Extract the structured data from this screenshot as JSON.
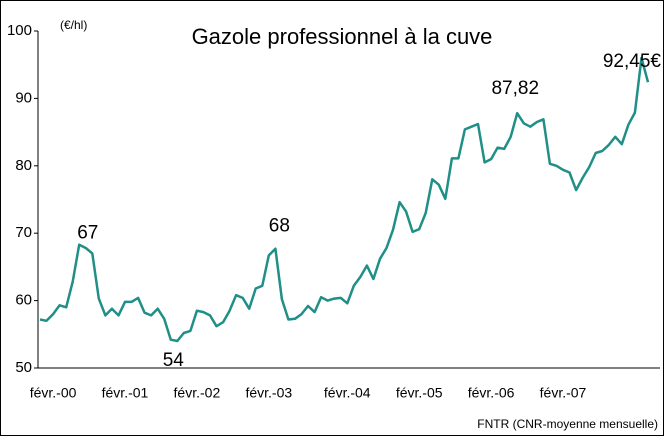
{
  "chart_data": {
    "type": "line",
    "title": "Gazole professionnel à la cuve",
    "unit_label": "(€/hl)",
    "source": "FNTR (CNR-moyenne mensuelle)",
    "categories": [
      null,
      null,
      "févr.-00",
      null,
      null,
      null,
      null,
      null,
      null,
      null,
      null,
      null,
      null,
      "févr.-01",
      null,
      null,
      null,
      null,
      null,
      null,
      null,
      null,
      null,
      null,
      "févr.-02",
      null,
      null,
      null,
      null,
      null,
      null,
      null,
      null,
      null,
      null,
      "févr.-03",
      null,
      null,
      null,
      null,
      null,
      null,
      null,
      null,
      null,
      null,
      null,
      "févr.-04",
      null,
      null,
      null,
      null,
      null,
      null,
      null,
      null,
      null,
      null,
      "févr.-05",
      null,
      null,
      null,
      null,
      null,
      null,
      null,
      null,
      null,
      null,
      "févr.-06",
      null,
      null,
      null,
      null,
      null,
      null,
      null,
      null,
      null,
      null,
      "févr.-07",
      null,
      null,
      null,
      null,
      null,
      null,
      null,
      null,
      null,
      null,
      null,
      null,
      null
    ],
    "series": [
      {
        "name": "Gazole",
        "color": "#1f8f87",
        "values": [
          57.2,
          57.0,
          58.0,
          59.3,
          59.0,
          62.8,
          68.3,
          67.8,
          67.0,
          60.3,
          57.8,
          58.8,
          57.8,
          59.8,
          59.8,
          60.4,
          58.2,
          57.8,
          58.8,
          57.3,
          54.2,
          54.0,
          55.2,
          55.5,
          58.5,
          58.3,
          57.8,
          56.2,
          56.8,
          58.5,
          60.8,
          60.4,
          58.8,
          61.8,
          62.2,
          66.7,
          67.7,
          60.2,
          57.2,
          57.3,
          58.0,
          59.2,
          58.3,
          60.5,
          60.0,
          60.3,
          60.4,
          59.6,
          62.2,
          63.5,
          65.2,
          63.2,
          66.2,
          67.8,
          70.5,
          74.6,
          73.2,
          70.2,
          70.6,
          73.0,
          78.0,
          77.2,
          75.1,
          81.1,
          81.1,
          85.4,
          85.8,
          86.2,
          80.5,
          81.0,
          82.7,
          82.5,
          84.3,
          87.8,
          86.3,
          85.8,
          86.5,
          86.9,
          80.3,
          80.0,
          79.4,
          79.0,
          76.4,
          78.2,
          79.8,
          81.9,
          82.2,
          83.1,
          84.3,
          83.2,
          86.1,
          87.9,
          96.0,
          92.4
        ]
      }
    ],
    "annotations": [
      {
        "text": "67",
        "index": 7,
        "value": 67
      },
      {
        "text": "54",
        "index": 21,
        "value": 54
      },
      {
        "text": "68",
        "index": 36,
        "value": 68
      },
      {
        "text": "87,82",
        "index": 73,
        "value": 87.82
      },
      {
        "text": "92,45€",
        "index": 91,
        "value": 92.45
      }
    ],
    "ylim": [
      50,
      100
    ],
    "yticks": [
      50,
      60,
      70,
      80,
      90,
      100
    ],
    "grid": false
  }
}
